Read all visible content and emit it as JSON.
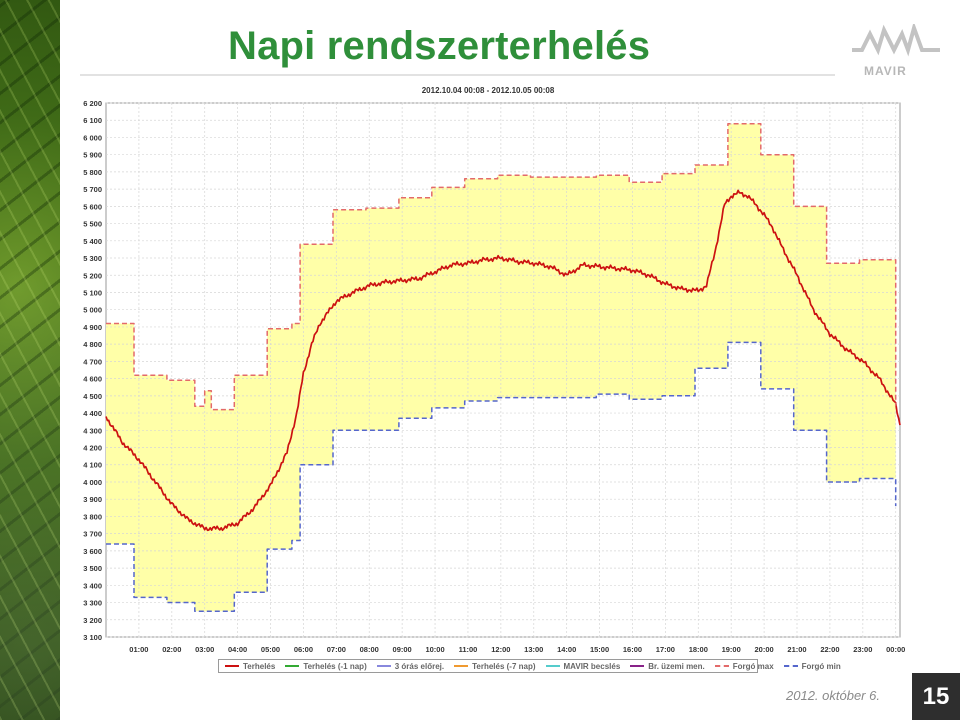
{
  "slide": {
    "title": "Napi rendszerterhelés",
    "logo_text": "MAVIR",
    "date": "2012. október 6.",
    "page_number": "15"
  },
  "colors": {
    "title": "#2f8f3a",
    "band_fill": "#ffffa8",
    "terheles": "#cc1111",
    "forgo_max": "#e36a6a",
    "forgo_min": "#5566cc"
  },
  "legend": [
    {
      "label": "Terhelés",
      "color": "#cc1111",
      "style": "solid"
    },
    {
      "label": "Terhelés (-1 nap)",
      "color": "#33aa33",
      "style": "solid"
    },
    {
      "label": "3 órás előrej.",
      "color": "#8888dd",
      "style": "solid"
    },
    {
      "label": "Terhelés (-7 nap)",
      "color": "#f09a30",
      "style": "solid"
    },
    {
      "label": "MAVIR becslés",
      "color": "#55cccc",
      "style": "solid"
    },
    {
      "label": "Br. üzemi men.",
      "color": "#882288",
      "style": "solid"
    },
    {
      "label": "Forgó max",
      "color": "#e36a6a",
      "style": "dashed"
    },
    {
      "label": "Forgó min",
      "color": "#5566cc",
      "style": "dashed"
    }
  ],
  "chart_data": {
    "type": "line",
    "title": "2012.10.04 00:08 - 2012.10.05 00:08",
    "xlabel": "",
    "ylabel": "",
    "x_unit": "hours",
    "xlim": [
      0,
      24.13
    ],
    "ylim": [
      3100,
      6200
    ],
    "y_ticks": [
      3100,
      3200,
      3300,
      3400,
      3500,
      3600,
      3700,
      3800,
      3900,
      4000,
      4100,
      4200,
      4300,
      4400,
      4500,
      4600,
      4700,
      4800,
      4900,
      5000,
      5100,
      5200,
      5300,
      5400,
      5500,
      5600,
      5700,
      5800,
      5900,
      6000,
      6100,
      6200
    ],
    "y_tick_labels": [
      "3 100",
      "3 200",
      "3 300",
      "3 400",
      "3 500",
      "3 600",
      "3 700",
      "3 800",
      "3 900",
      "4 000",
      "4 100",
      "4 200",
      "4 300",
      "4 400",
      "4 500",
      "4 600",
      "4 700",
      "4 800",
      "4 900",
      "5 000",
      "5 100",
      "5 200",
      "5 300",
      "5 400",
      "5 500",
      "5 600",
      "5 700",
      "5 800",
      "5 900",
      "6 000",
      "6 100",
      "6 200"
    ],
    "x_ticks": [
      1,
      2,
      3,
      4,
      5,
      6,
      7,
      8,
      9,
      10,
      11,
      12,
      13,
      14,
      15,
      16,
      17,
      18,
      19,
      20,
      21,
      22,
      23,
      24
    ],
    "x_tick_labels": [
      "01:00",
      "02:00",
      "03:00",
      "04:00",
      "05:00",
      "06:00",
      "07:00",
      "08:00",
      "09:00",
      "10:00",
      "11:00",
      "12:00",
      "13:00",
      "14:00",
      "15:00",
      "16:00",
      "17:00",
      "18:00",
      "19:00",
      "20:00",
      "21:00",
      "22:00",
      "23:00",
      "00:00"
    ],
    "grid": true,
    "legend_position": "bottom",
    "band_between": [
      "Forgó max",
      "Forgó min"
    ],
    "series": [
      {
        "name": "Terhelés",
        "color": "#cc1111",
        "x": [
          0,
          0.5,
          1,
          1.5,
          2,
          2.5,
          3,
          3.5,
          4,
          4.5,
          5,
          5.5,
          5.8,
          6,
          6.25,
          6.5,
          7,
          7.5,
          8,
          8.5,
          9,
          9.5,
          10,
          10.5,
          11,
          11.5,
          12,
          12.5,
          13,
          13.5,
          14,
          14.5,
          15,
          15.5,
          16,
          16.5,
          17,
          17.5,
          18,
          18.25,
          18.5,
          18.8,
          19,
          19.25,
          19.5,
          19.75,
          20,
          20.25,
          20.5,
          21,
          21.5,
          22,
          22.5,
          23,
          23.5,
          24,
          24.13
        ],
        "y": [
          4380,
          4230,
          4130,
          4000,
          3870,
          3780,
          3730,
          3730,
          3760,
          3850,
          3980,
          4170,
          4400,
          4630,
          4800,
          4920,
          5050,
          5100,
          5140,
          5160,
          5170,
          5180,
          5220,
          5260,
          5270,
          5290,
          5300,
          5280,
          5270,
          5250,
          5200,
          5260,
          5250,
          5240,
          5230,
          5200,
          5150,
          5120,
          5110,
          5140,
          5330,
          5610,
          5660,
          5680,
          5660,
          5610,
          5550,
          5480,
          5380,
          5200,
          5000,
          4860,
          4770,
          4700,
          4600,
          4450,
          4330
        ]
      },
      {
        "name": "Forgó max",
        "color": "#e36a6a",
        "style": "dashed",
        "x": [
          0,
          0.85,
          0.85,
          1.85,
          1.85,
          2.7,
          2.7,
          3,
          3,
          3.2,
          3.2,
          3.9,
          3.9,
          4.9,
          4.9,
          5.65,
          5.65,
          5.9,
          5.9,
          6.9,
          6.9,
          7.9,
          7.9,
          8.9,
          8.9,
          9.9,
          9.9,
          10.9,
          10.9,
          11.9,
          11.9,
          12.9,
          12.9,
          13.9,
          13.9,
          14.9,
          14.9,
          15.9,
          15.9,
          16.9,
          16.9,
          17.9,
          17.9,
          18.9,
          18.9,
          19.9,
          19.9,
          20.9,
          20.9,
          21.9,
          21.9,
          22.9,
          22.9,
          24,
          24
        ],
        "y": [
          4920,
          4920,
          4620,
          4620,
          4590,
          4590,
          4440,
          4440,
          4530,
          4530,
          4420,
          4420,
          4620,
          4620,
          4890,
          4890,
          4920,
          4920,
          5380,
          5380,
          5580,
          5580,
          5590,
          5590,
          5650,
          5650,
          5710,
          5710,
          5760,
          5760,
          5780,
          5780,
          5770,
          5770,
          5770,
          5770,
          5780,
          5780,
          5740,
          5740,
          5790,
          5790,
          5840,
          5840,
          6080,
          6080,
          5900,
          5900,
          5600,
          5600,
          5270,
          5270,
          5290,
          5290,
          4440
        ]
      },
      {
        "name": "Forgó min",
        "color": "#5566cc",
        "style": "dashed",
        "x": [
          0,
          0.85,
          0.85,
          1.85,
          1.85,
          2.7,
          2.7,
          3.9,
          3.9,
          4.9,
          4.9,
          5.65,
          5.65,
          5.9,
          5.9,
          6.9,
          6.9,
          7.9,
          7.9,
          8.9,
          8.9,
          9.9,
          9.9,
          10.9,
          10.9,
          11.9,
          11.9,
          12.9,
          12.9,
          13.9,
          13.9,
          14.9,
          14.9,
          15.9,
          15.9,
          16.9,
          16.9,
          17.9,
          17.9,
          18.9,
          18.9,
          19.9,
          19.9,
          20.9,
          20.9,
          21.9,
          21.9,
          22.9,
          22.9,
          24,
          24
        ],
        "y": [
          3640,
          3640,
          3330,
          3330,
          3300,
          3300,
          3250,
          3250,
          3360,
          3360,
          3610,
          3610,
          3660,
          3660,
          4100,
          4100,
          4300,
          4300,
          4300,
          4300,
          4370,
          4370,
          4430,
          4430,
          4470,
          4470,
          4490,
          4490,
          4490,
          4490,
          4490,
          4490,
          4510,
          4510,
          4480,
          4480,
          4500,
          4500,
          4660,
          4660,
          4810,
          4810,
          4540,
          4540,
          4300,
          4300,
          4000,
          4000,
          4020,
          4020,
          3860
        ]
      }
    ]
  }
}
